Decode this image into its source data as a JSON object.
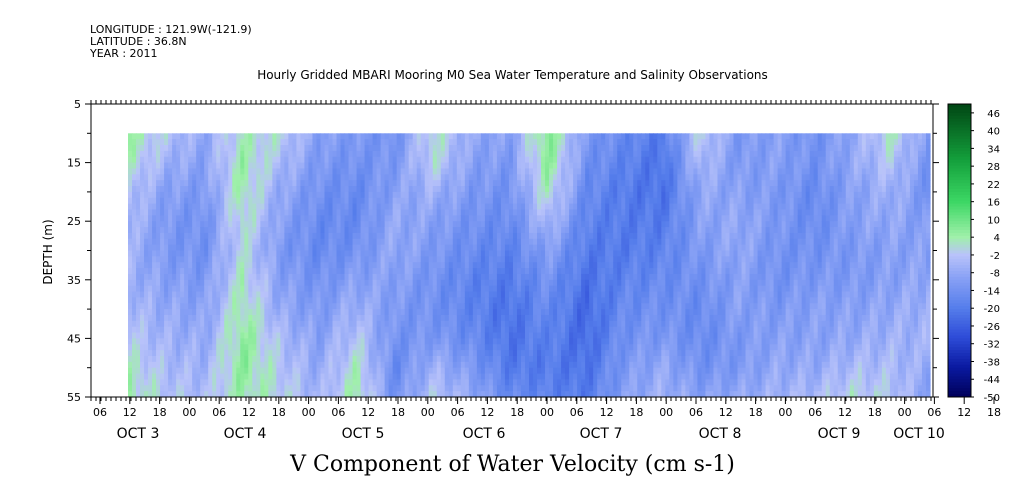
{
  "header": {
    "longitude": "LONGITUDE : 121.9W(-121.9)",
    "latitude": "LATITUDE : 36.8N",
    "year": "YEAR : 2011"
  },
  "chart_data": {
    "type": "heatmap",
    "title": "Hourly Gridded MBARI Mooring M0 Sea Water Temperature and Salinity Observations",
    "xlabel": "V Component of Water Velocity (cm s-1)",
    "ylabel": "DEPTH (m)",
    "ylim": [
      55,
      5
    ],
    "y_ticks": [
      5,
      15,
      25,
      35,
      45,
      55
    ],
    "data_depth_range": [
      10,
      55
    ],
    "x_hour_ticks": [
      "06",
      "12",
      "18",
      "00",
      "06",
      "12",
      "18",
      "00",
      "06",
      "12",
      "18",
      "00",
      "06",
      "12",
      "18",
      "00",
      "06",
      "12",
      "18",
      "00",
      "06",
      "12",
      "18",
      "00",
      "06",
      "12",
      "18",
      "00",
      "06",
      "12",
      "18",
      "00"
    ],
    "x_day_labels": [
      "OCT 3",
      "OCT 4",
      "OCT 5",
      "OCT 6",
      "OCT 7",
      "OCT 8",
      "OCT 9",
      "OCT 10"
    ],
    "colorbar": {
      "tick_labels": [
        "46",
        "40",
        "34",
        "28",
        "22",
        "16",
        "10",
        "4",
        "-2",
        "-8",
        "-14",
        "-20",
        "-26",
        "-32",
        "-38",
        "-44",
        "-50"
      ],
      "range": [
        -50,
        49
      ]
    },
    "field_columns": [
      [
        4,
        2,
        -2,
        -4,
        -6,
        -6,
        -4,
        -2,
        2,
        4
      ],
      [
        -2,
        -6,
        -10,
        -12,
        -12,
        -10,
        -8,
        -6,
        -4,
        -2
      ],
      [
        -8,
        -10,
        -12,
        -14,
        -14,
        -12,
        -10,
        -8,
        -6,
        -4
      ],
      [
        2,
        4,
        4,
        2,
        0,
        2,
        4,
        6,
        6,
        4
      ],
      [
        0,
        -4,
        -8,
        -10,
        -12,
        -10,
        -8,
        -4,
        -2,
        0
      ],
      [
        -10,
        -12,
        -14,
        -16,
        -16,
        -14,
        -12,
        -10,
        -8,
        -6
      ],
      [
        -12,
        -14,
        -16,
        -16,
        -14,
        -10,
        -6,
        -2,
        2,
        4
      ],
      [
        -14,
        -12,
        -10,
        -8,
        -8,
        -10,
        -12,
        -14,
        -16,
        -14
      ],
      [
        2,
        0,
        -6,
        -10,
        -12,
        -14,
        -14,
        -12,
        -6,
        -2
      ],
      [
        -8,
        -10,
        -12,
        -14,
        -16,
        -18,
        -18,
        -16,
        -12,
        -8
      ],
      [
        -10,
        -12,
        -14,
        -16,
        -18,
        -20,
        -22,
        -22,
        -20,
        -16
      ],
      [
        8,
        6,
        2,
        -4,
        -10,
        -14,
        -16,
        -18,
        -20,
        -18
      ],
      [
        -12,
        -14,
        -16,
        -18,
        -20,
        -22,
        -24,
        -24,
        -22,
        -20
      ],
      [
        -16,
        -18,
        -20,
        -20,
        -20,
        -18,
        -16,
        -14,
        -12,
        -10
      ],
      [
        -20,
        -22,
        -22,
        -20,
        -18,
        -16,
        -14,
        -12,
        -8,
        -6
      ],
      [
        0,
        -4,
        -8,
        -10,
        -12,
        -14,
        -16,
        -16,
        -14,
        -10
      ],
      [
        -12,
        -12,
        -10,
        -8,
        -8,
        -10,
        -10,
        -12,
        -12,
        -8
      ],
      [
        -10,
        -10,
        -12,
        -12,
        -14,
        -14,
        -12,
        -10,
        -8,
        -6
      ],
      [
        -14,
        -14,
        -16,
        -16,
        -14,
        -12,
        -10,
        -10,
        -8,
        -4
      ],
      [
        -8,
        -8,
        -10,
        -10,
        -12,
        -12,
        -10,
        -8,
        -4,
        0
      ],
      [
        2,
        -2,
        -6,
        -8,
        -10,
        -10,
        -8,
        -6,
        -4,
        -2
      ],
      [
        -12,
        -14,
        -14,
        -12,
        -10,
        -8,
        -6,
        -6,
        -8,
        -10
      ]
    ]
  }
}
